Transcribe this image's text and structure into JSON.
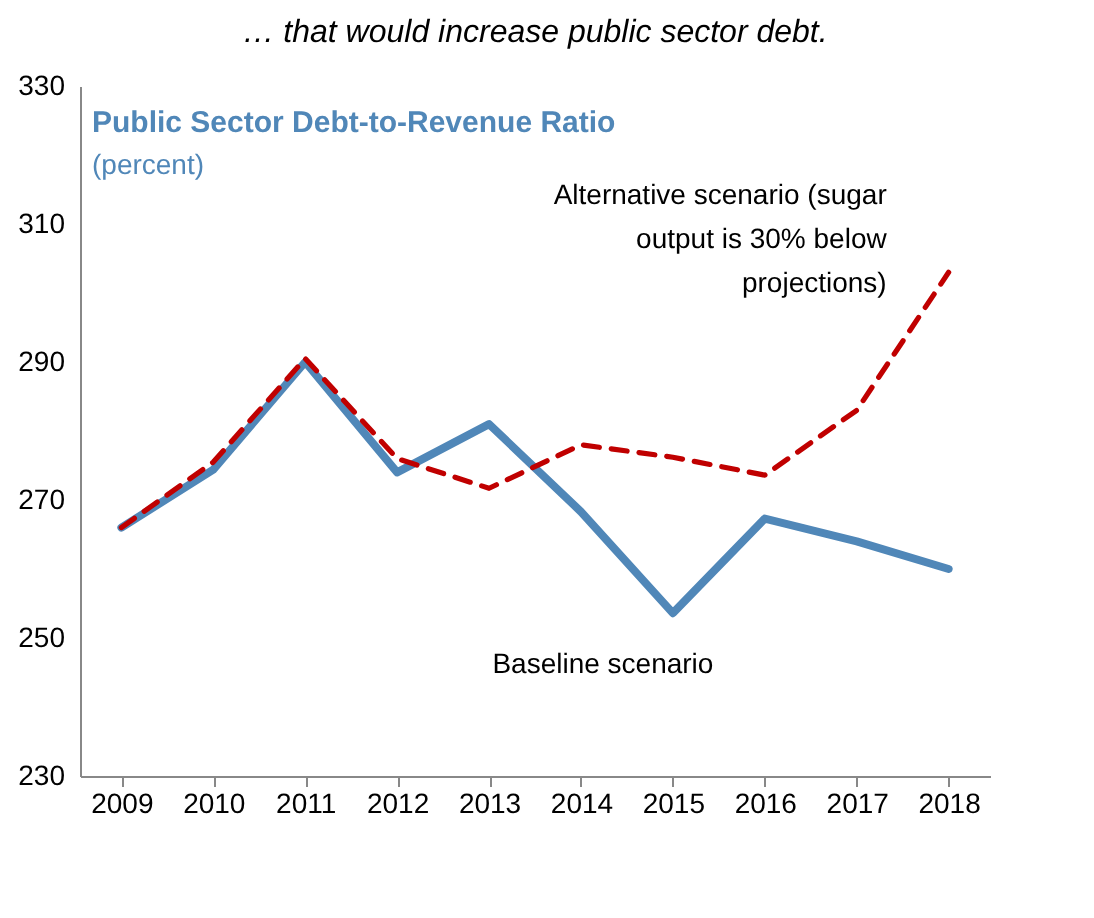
{
  "chart_data": {
    "type": "line",
    "title": "Public Sector Debt-to-Revenue Ratio",
    "subtitle": "(percent)",
    "annotations": [
      "… that would increase public sector debt."
    ],
    "categories": [
      "2009",
      "2010",
      "2011",
      "2012",
      "2013",
      "2014",
      "2015",
      "2016",
      "2017",
      "2018"
    ],
    "series": [
      {
        "name": "Baseline scenario",
        "color": "#5087b8",
        "line_style": "solid",
        "values": [
          266,
          274.4,
          290,
          274,
          281,
          268.3,
          253.6,
          267.3,
          264,
          260
        ]
      },
      {
        "name": "Alternative scenario (sugar output is 30% below projections)",
        "color": "#c00000",
        "line_style": "dashed",
        "values": [
          266,
          275.5,
          290.5,
          276,
          271.7,
          278,
          276.2,
          273.6,
          283,
          303
        ]
      }
    ],
    "ylim": [
      230,
      330
    ],
    "yticks": [
      230,
      250,
      270,
      290,
      310,
      330
    ],
    "grid": false,
    "legend": false,
    "marker": "none"
  }
}
